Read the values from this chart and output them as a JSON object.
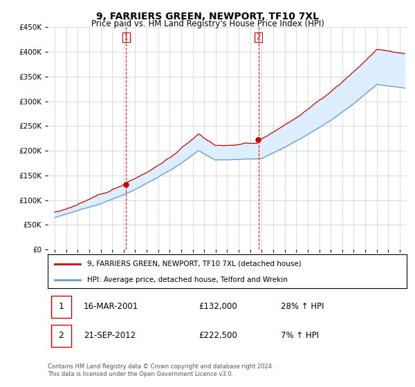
{
  "title": "9, FARRIERS GREEN, NEWPORT, TF10 7XL",
  "subtitle": "Price paid vs. HM Land Registry's House Price Index (HPI)",
  "red_label": "9, FARRIERS GREEN, NEWPORT, TF10 7XL (detached house)",
  "blue_label": "HPI: Average price, detached house, Telford and Wrekin",
  "transaction1_date": "16-MAR-2001",
  "transaction1_price": "£132,000",
  "transaction1_hpi": "28% ↑ HPI",
  "transaction2_date": "21-SEP-2012",
  "transaction2_price": "£222,500",
  "transaction2_hpi": "7% ↑ HPI",
  "footer": "Contains HM Land Registry data © Crown copyright and database right 2024.\nThis data is licensed under the Open Government Licence v3.0.",
  "ylim": [
    0,
    450000
  ],
  "yticks": [
    0,
    50000,
    100000,
    150000,
    200000,
    250000,
    300000,
    350000,
    400000,
    450000
  ],
  "red_color": "#cc0000",
  "blue_color": "#6699cc",
  "fill_color": "#ddeeff",
  "dashed_line_color": "#cc0000",
  "background_color": "#ffffff",
  "plot_bg_color": "#ffffff",
  "grid_color": "#cccccc",
  "t1_year": 2001.208,
  "t1_value": 132000,
  "t2_year": 2012.708,
  "t2_value": 222500
}
